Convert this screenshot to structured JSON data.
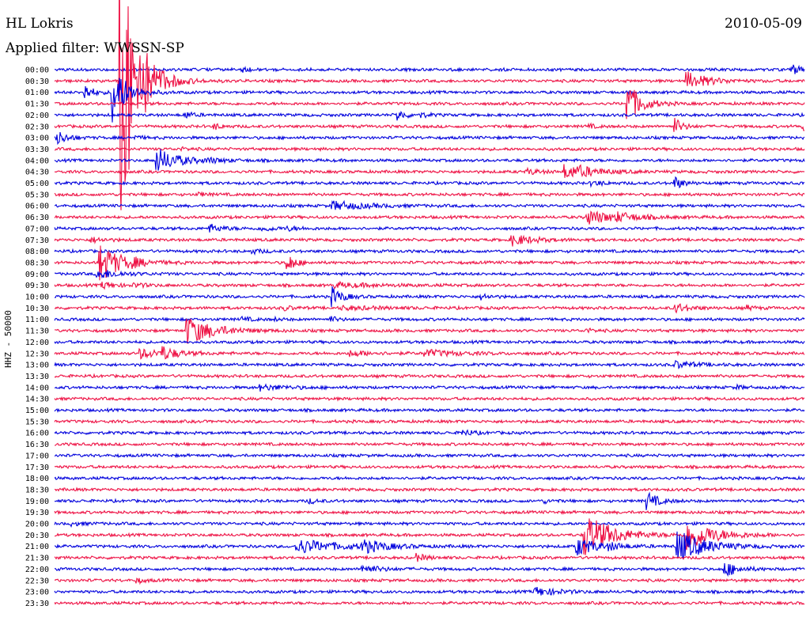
{
  "header": {
    "station": "HL Lokris",
    "date": "2010-05-09",
    "filter": "Applied filter: WWSSN-SP"
  },
  "channel_label": "HHZ - 50000",
  "colors": {
    "blue": "#0000dd",
    "red": "#ee1144",
    "text": "#000000"
  },
  "chart_data": {
    "type": "line",
    "title": "HL Lokris",
    "ylabel": "HHZ - 50000",
    "row_labels": [
      "00:00",
      "00:30",
      "01:00",
      "01:30",
      "02:00",
      "02:30",
      "03:00",
      "03:30",
      "04:00",
      "04:30",
      "05:00",
      "05:30",
      "06:00",
      "06:30",
      "07:00",
      "07:30",
      "08:00",
      "08:30",
      "09:00",
      "09:30",
      "10:00",
      "10:30",
      "11:00",
      "11:30",
      "12:00",
      "12:30",
      "13:00",
      "13:30",
      "14:00",
      "14:30",
      "15:00",
      "15:30",
      "16:00",
      "16:30",
      "17:00",
      "17:30",
      "18:00",
      "18:30",
      "19:00",
      "19:30",
      "20:00",
      "20:30",
      "21:00",
      "21:30",
      "22:00",
      "22:30",
      "23:00",
      "23:30"
    ],
    "minutes_per_line": 30,
    "row_colors": [
      "blue",
      "red"
    ],
    "events": [
      {
        "row": 0,
        "minute": 7.5,
        "amp": 0.4,
        "dur": 0.3
      },
      {
        "row": 0,
        "minute": 29.5,
        "amp": 0.8,
        "dur": 0.4
      },
      {
        "row": 1,
        "minute": 2.6,
        "amp": 28,
        "dur": 0.6
      },
      {
        "row": 1,
        "minute": 2.8,
        "amp": 1.6,
        "dur": 0.8
      },
      {
        "row": 1,
        "minute": 25.3,
        "amp": 1.6,
        "dur": 0.8
      },
      {
        "row": 2,
        "minute": 1.2,
        "amp": 1.5,
        "dur": 0.3
      },
      {
        "row": 2,
        "minute": 2.3,
        "amp": 6,
        "dur": 0.5
      },
      {
        "row": 3,
        "minute": 22.9,
        "amp": 4,
        "dur": 0.5
      },
      {
        "row": 4,
        "minute": 5.2,
        "amp": 0.6,
        "dur": 0.3
      },
      {
        "row": 4,
        "minute": 13.7,
        "amp": 1,
        "dur": 0.3
      },
      {
        "row": 4,
        "minute": 14.6,
        "amp": 0.4,
        "dur": 0.3
      },
      {
        "row": 5,
        "minute": 6.4,
        "amp": 0.5,
        "dur": 0.3
      },
      {
        "row": 5,
        "minute": 21.3,
        "amp": 0.4,
        "dur": 0.3
      },
      {
        "row": 5,
        "minute": 24.8,
        "amp": 1.5,
        "dur": 0.3
      },
      {
        "row": 5,
        "minute": 29.9,
        "amp": 0.8,
        "dur": 0.3
      },
      {
        "row": 6,
        "minute": 0.1,
        "amp": 1.2,
        "dur": 0.4
      },
      {
        "row": 6,
        "minute": 3.2,
        "amp": 0.3,
        "dur": 0.3
      },
      {
        "row": 7,
        "minute": 5.1,
        "amp": 0.2,
        "dur": 0.3
      },
      {
        "row": 8,
        "minute": 4.1,
        "amp": 2.2,
        "dur": 0.8
      },
      {
        "row": 8,
        "minute": 6.1,
        "amp": 0.3,
        "dur": 0.6
      },
      {
        "row": 9,
        "minute": 18.9,
        "amp": 0.5,
        "dur": 0.5
      },
      {
        "row": 9,
        "minute": 20.4,
        "amp": 1.2,
        "dur": 1
      },
      {
        "row": 9,
        "minute": 21,
        "amp": 0.4,
        "dur": 0.5
      },
      {
        "row": 10,
        "minute": 24.8,
        "amp": 1.2,
        "dur": 0.3
      },
      {
        "row": 10,
        "minute": 21.5,
        "amp": 0.4,
        "dur": 0.5
      },
      {
        "row": 11,
        "minute": 5.8,
        "amp": 0.3,
        "dur": 0.3
      },
      {
        "row": 12,
        "minute": 11.1,
        "amp": 0.8,
        "dur": 1.2
      },
      {
        "row": 13,
        "minute": 21.3,
        "amp": 1.3,
        "dur": 1
      },
      {
        "row": 13,
        "minute": 22.5,
        "amp": 0.5,
        "dur": 0.8
      },
      {
        "row": 14,
        "minute": 6.2,
        "amp": 0.7,
        "dur": 0.5
      },
      {
        "row": 14,
        "minute": 8.3,
        "amp": 0.4,
        "dur": 0.5
      },
      {
        "row": 14,
        "minute": 9.3,
        "amp": 0.3,
        "dur": 0.5
      },
      {
        "row": 15,
        "minute": 1.5,
        "amp": 0.4,
        "dur": 0.5
      },
      {
        "row": 15,
        "minute": 18.3,
        "amp": 1,
        "dur": 0.8
      },
      {
        "row": 16,
        "minute": 7.9,
        "amp": 0.4,
        "dur": 0.4
      },
      {
        "row": 17,
        "minute": 1.8,
        "amp": 3.5,
        "dur": 0.8
      },
      {
        "row": 17,
        "minute": 3.1,
        "amp": 0.4,
        "dur": 0.3
      },
      {
        "row": 17,
        "minute": 9.3,
        "amp": 1.8,
        "dur": 0.3
      },
      {
        "row": 18,
        "minute": 1.7,
        "amp": 0.9,
        "dur": 0.8
      },
      {
        "row": 19,
        "minute": 1.9,
        "amp": 0.6,
        "dur": 0.5
      },
      {
        "row": 19,
        "minute": 3.2,
        "amp": 0.3,
        "dur": 0.5
      },
      {
        "row": 19,
        "minute": 11.2,
        "amp": 0.4,
        "dur": 1.5
      },
      {
        "row": 20,
        "minute": 11.1,
        "amp": 1.6,
        "dur": 0.4
      },
      {
        "row": 20,
        "minute": 17.1,
        "amp": 0.5,
        "dur": 0.3
      },
      {
        "row": 21,
        "minute": 9.2,
        "amp": 0.4,
        "dur": 0.3
      },
      {
        "row": 21,
        "minute": 11.5,
        "amp": 0.3,
        "dur": 1.5
      },
      {
        "row": 21,
        "minute": 24.8,
        "amp": 0.9,
        "dur": 0.5
      },
      {
        "row": 21,
        "minute": 27.7,
        "amp": 0.4,
        "dur": 0.3
      },
      {
        "row": 22,
        "minute": 11,
        "amp": 0.5,
        "dur": 0.3
      },
      {
        "row": 22,
        "minute": 7.5,
        "amp": 0.3,
        "dur": 0.4
      },
      {
        "row": 22,
        "minute": 8.8,
        "amp": 0.2,
        "dur": 0.3
      },
      {
        "row": 23,
        "minute": 5.3,
        "amp": 2.5,
        "dur": 1
      },
      {
        "row": 23,
        "minute": 21.3,
        "amp": 0.3,
        "dur": 0.3
      },
      {
        "row": 25,
        "minute": 3.4,
        "amp": 0.8,
        "dur": 1
      },
      {
        "row": 25,
        "minute": 4.3,
        "amp": 1,
        "dur": 0.5
      },
      {
        "row": 25,
        "minute": 11.8,
        "amp": 0.5,
        "dur": 0.8
      },
      {
        "row": 25,
        "minute": 14.8,
        "amp": 0.6,
        "dur": 1.2
      },
      {
        "row": 26,
        "minute": 24.8,
        "amp": 0.6,
        "dur": 0.8
      },
      {
        "row": 28,
        "minute": 8.2,
        "amp": 0.5,
        "dur": 1
      },
      {
        "row": 28,
        "minute": 27.3,
        "amp": 0.3,
        "dur": 0.3
      },
      {
        "row": 32,
        "minute": 16.3,
        "amp": 0.6,
        "dur": 0.4
      },
      {
        "row": 38,
        "minute": 10.2,
        "amp": 0.4,
        "dur": 0.3
      },
      {
        "row": 38,
        "minute": 19.6,
        "amp": 0.3,
        "dur": 0.3
      },
      {
        "row": 38,
        "minute": 23.7,
        "amp": 1.6,
        "dur": 0.4
      },
      {
        "row": 40,
        "minute": 0.7,
        "amp": 0.3,
        "dur": 0.5
      },
      {
        "row": 41,
        "minute": 21.2,
        "amp": 4,
        "dur": 1
      },
      {
        "row": 41,
        "minute": 25.3,
        "amp": 2.8,
        "dur": 1
      },
      {
        "row": 42,
        "minute": 9.7,
        "amp": 1.3,
        "dur": 1.5
      },
      {
        "row": 42,
        "minute": 12.3,
        "amp": 1.1,
        "dur": 0.8
      },
      {
        "row": 42,
        "minute": 20.9,
        "amp": 1.6,
        "dur": 0.8
      },
      {
        "row": 42,
        "minute": 22.2,
        "amp": 0.4,
        "dur": 0.5
      },
      {
        "row": 42,
        "minute": 24.9,
        "amp": 3,
        "dur": 1
      },
      {
        "row": 43,
        "minute": 14.5,
        "amp": 0.6,
        "dur": 0.4
      },
      {
        "row": 44,
        "minute": 12.3,
        "amp": 0.8,
        "dur": 0.6
      },
      {
        "row": 44,
        "minute": 26.8,
        "amp": 1.4,
        "dur": 0.5
      },
      {
        "row": 45,
        "minute": 3.3,
        "amp": 0.4,
        "dur": 0.3
      },
      {
        "row": 46,
        "minute": 19.2,
        "amp": 0.8,
        "dur": 0.8
      }
    ]
  }
}
